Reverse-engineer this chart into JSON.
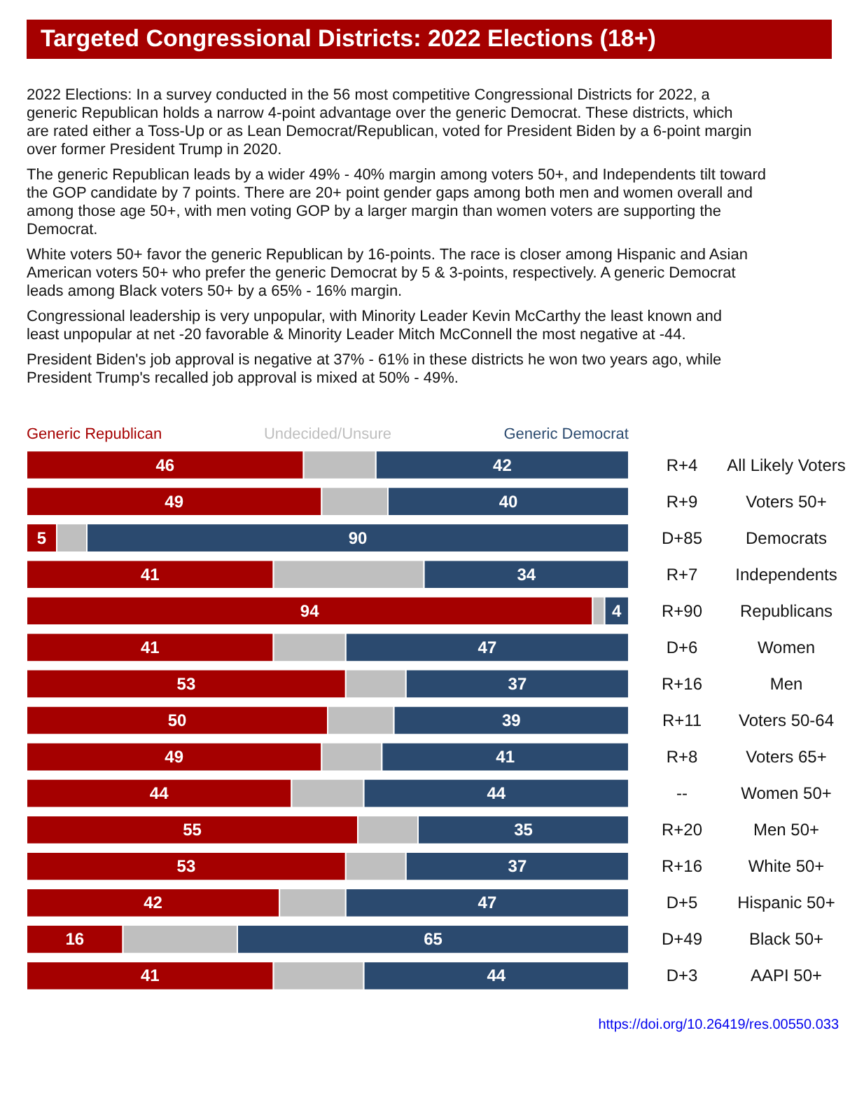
{
  "chart_data": {
    "type": "bar",
    "orientation": "horizontal",
    "stacked": true,
    "legend": "top",
    "title": "Targeted Congressional Districts: 2022 Elections (18+)",
    "categories": [
      "All Likely Voters",
      "Voters 50+",
      "Democrats",
      "Independents",
      "Republicans",
      "Women",
      "Men",
      "Voters 50-64",
      "Voters 65+",
      "Women 50+",
      "Men 50+",
      "White 50+",
      "Hispanic 50+",
      "Black 50+",
      "AAPI 50+"
    ],
    "series": [
      {
        "name": "Generic Republican",
        "color": "#a50000",
        "values": [
          46,
          49,
          5,
          41,
          94,
          41,
          53,
          50,
          49,
          44,
          55,
          53,
          42,
          16,
          41
        ],
        "value_labels": [
          "46",
          "49",
          "5",
          "41",
          "94",
          "41",
          "53",
          "50",
          "49",
          "44",
          "55",
          "53",
          "42",
          "16",
          "41"
        ]
      },
      {
        "name": "Undecided/Unsure",
        "color": "#bfbfbf",
        "values": [
          12,
          11,
          5,
          25,
          2,
          12,
          10,
          11,
          10,
          12,
          10,
          10,
          11,
          19,
          15
        ]
      },
      {
        "name": "Generic Democrat",
        "color": "#2b4a6f",
        "values": [
          42,
          40,
          90,
          34,
          4,
          47,
          37,
          39,
          41,
          44,
          35,
          37,
          47,
          65,
          44
        ],
        "value_labels": [
          "42",
          "40",
          "90",
          "34",
          "4",
          "47",
          "37",
          "39",
          "41",
          "44",
          "35",
          "37",
          "47",
          "65",
          "44"
        ]
      }
    ],
    "annotations": [
      "2022 Elections: In a survey conducted in the 56 most competitive Congressional Districts for 2022, a generic Republican holds a narrow 4-point advantage over the generic Democrat. These districts, which are rated either a Toss-Up or as Lean Democrat/Republican, voted for President Biden by a 6-point margin over former President Trump in 2020.",
      "The generic Republican leads by a wider 49% - 40% margin among voters 50+, and Independents tilt toward the GOP candidate by 7 points. There are 20+ point gender gaps among both men and women overall and among those age 50+, with men voting GOP by a larger margin than women voters are supporting the Democrat.",
      "White voters 50+ favor the generic Republican by 16-points. The race is closer among Hispanic and Asian American voters 50+ who prefer the generic Democrat by 5 & 3-points, respectively. A generic Democrat leads among Black voters 50+ by a 65% - 16% margin.",
      "Congressional leadership is very unpopular, with Minority Leader Kevin McCarthy the least known and least unpopular at net -20 favorable & Minority Leader Mitch McConnell the most negative at -44.",
      "President Biden's job approval is negative at 37% - 61% in these districts he won two years ago, while President Trump's recalled job approval is mixed at 50% - 49%.",
      "R+4",
      "R+9",
      "D+85",
      "R+7",
      "R+90",
      "D+6",
      "R+16",
      "R+11",
      "R+8",
      "--",
      "R+20",
      "R+16",
      "D+5",
      "D+49",
      "D+3",
      "https://doi.org/10.26419/res.00550.033"
    ]
  }
}
